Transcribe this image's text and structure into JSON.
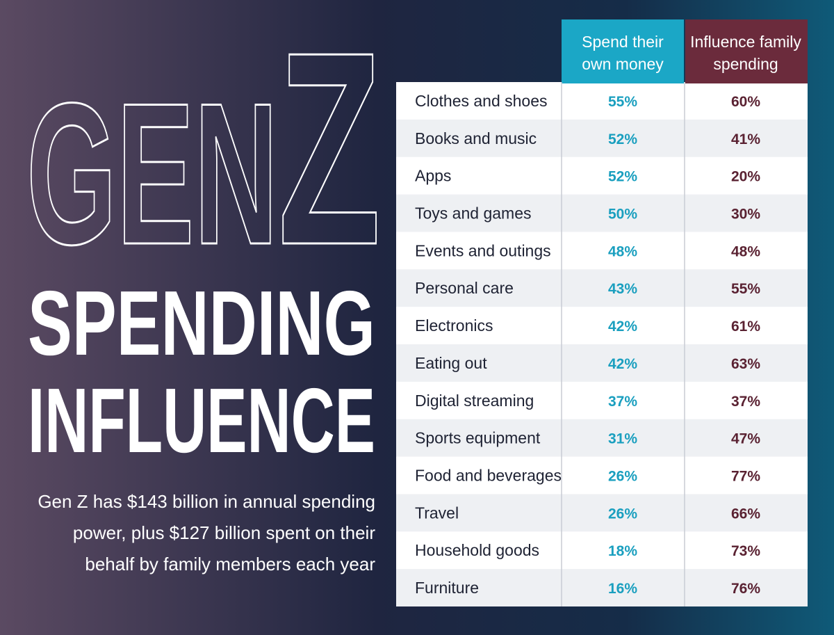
{
  "title": {
    "gen": "GEN",
    "z": "Z",
    "line2": "SPENDING",
    "line3": "INFLUENCE"
  },
  "description": [
    "Gen Z has $143 billion in annual spending",
    "power, plus $127 billion spent on their",
    "behalf by family members each year"
  ],
  "table": {
    "headers": [
      [
        "Spend their",
        "own money"
      ],
      [
        "Influence family",
        "spending"
      ]
    ],
    "rows": [
      [
        "Clothes and shoes",
        "55%",
        "60%"
      ],
      [
        "Books and music",
        "52%",
        "41%"
      ],
      [
        "Apps",
        "52%",
        "20%"
      ],
      [
        "Toys and games",
        "50%",
        "30%"
      ],
      [
        "Events and outings",
        "48%",
        "48%"
      ],
      [
        "Personal care",
        "43%",
        "55%"
      ],
      [
        "Electronics",
        "42%",
        "61%"
      ],
      [
        "Eating out",
        "42%",
        "63%"
      ],
      [
        "Digital streaming",
        "37%",
        "37%"
      ],
      [
        "Sports equipment",
        "31%",
        "47%"
      ],
      [
        "Food and beverages",
        "26%",
        "77%"
      ],
      [
        "Travel",
        "26%",
        "66%"
      ],
      [
        "Household goods",
        "18%",
        "73%"
      ],
      [
        "Furniture",
        "16%",
        "76%"
      ]
    ]
  }
}
